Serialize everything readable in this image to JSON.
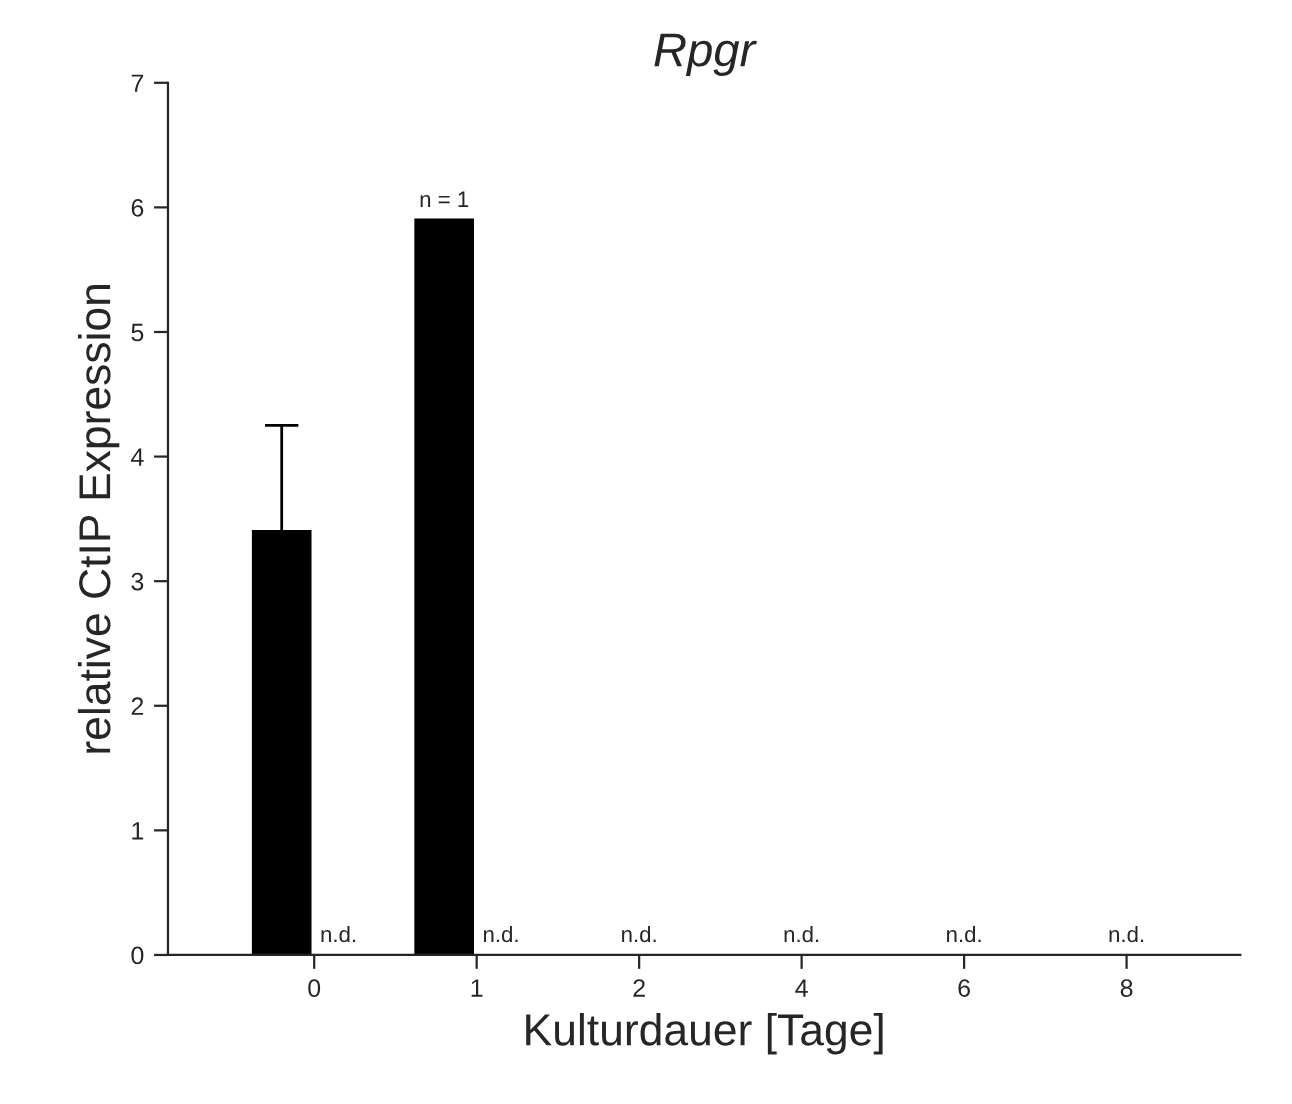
{
  "chart_data": {
    "type": "bar",
    "title": "Rpgr",
    "xlabel": "Kulturdauer [Tage]",
    "ylabel": "relative CtIP Expression",
    "categories": [
      "0",
      "1",
      "2",
      "4",
      "6",
      "8"
    ],
    "values": [
      3.4,
      5.9,
      null,
      null,
      null,
      null
    ],
    "errors": [
      [
        3.4,
        4.25
      ],
      null,
      null,
      null,
      null,
      null
    ],
    "color": "#000000",
    "ylim": [
      0,
      7
    ],
    "yticks": [
      0,
      1,
      2,
      3,
      4,
      5,
      6,
      7
    ],
    "grid": false,
    "legend": false,
    "annotations": [
      {
        "text": "n = 1",
        "x": "1",
        "y": 5.9
      },
      "n.d.",
      "n.d.",
      "n.d.",
      "n.d.",
      "n.d.",
      "n.d."
    ]
  }
}
